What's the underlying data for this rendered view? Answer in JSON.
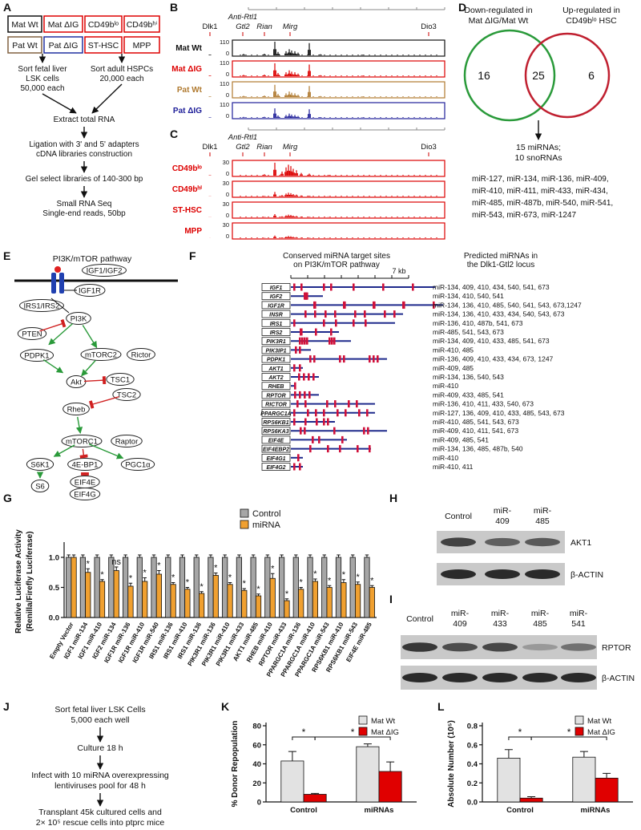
{
  "panel_labels": [
    "A",
    "B",
    "C",
    "D",
    "E",
    "F",
    "G",
    "H",
    "I",
    "J",
    "K",
    "L"
  ],
  "panel_a": {
    "groups": [
      "Mat Wt",
      "Mat ΔIG",
      "CD49bˡᵒ",
      "CD49bʰⁱ",
      "Pat Wt",
      "Pat ΔIG",
      "ST-HSC",
      "MPP"
    ],
    "left_sort": [
      "Sort fetal liver",
      "LSK cells",
      "50,000 each"
    ],
    "right_sort": [
      "Sort adult HSPCs",
      "20,000 each"
    ],
    "steps": [
      [
        "Extract total RNA"
      ],
      [
        "Ligation with 3' and 5' adapters",
        "cDNA libraries construction"
      ],
      [
        "Gel select libraries of 140-300 bp"
      ],
      [
        "Small RNA Seq",
        "Single-end reads, 50bp"
      ]
    ]
  },
  "panel_b": {
    "genes": [
      "Dlk1",
      "Anti-Rtl1",
      "Gtl2",
      "Rian",
      "Mirg",
      "Dio3"
    ],
    "tracks": [
      {
        "name": "Mat Wt",
        "max": 110,
        "min": 0
      },
      {
        "name": "Mat ΔIG",
        "max": 110,
        "min": 0
      },
      {
        "name": "Pat Wt",
        "max": 110,
        "min": 0
      },
      {
        "name": "Pat ΔIG",
        "max": 110,
        "min": 0
      }
    ]
  },
  "panel_c": {
    "genes": [
      "Dlk1",
      "Anti-Rtl1",
      "Gtl2",
      "Rian",
      "Mirg",
      "Dio3"
    ],
    "tracks": [
      {
        "name": "CD49bˡᵒ",
        "max": 30,
        "min": 0
      },
      {
        "name": "CD49bʰⁱ",
        "max": 30,
        "min": 0
      },
      {
        "name": "ST-HSC",
        "max": 30,
        "min": 0
      },
      {
        "name": "MPP",
        "max": 30,
        "min": 0
      }
    ]
  },
  "panel_d": {
    "left_set": [
      "Down-regulated in",
      "Mat ΔIG/Mat Wt"
    ],
    "right_set": [
      "Up-regulated in",
      "CD49bˡᵒ HSC"
    ],
    "left_only": 16,
    "overlap": 25,
    "right_only": 6,
    "overlap_summary": [
      "15 miRNAs;",
      "10 snoRNAs"
    ],
    "mirnas": [
      "miR-127, miR-134, miR-136, miR-409,",
      "miR-410, miR-411, miR-433, miR-434,",
      "miR-485, miR-487b, miR-540, miR-541,",
      "miR-543, miR-673, miR-1247"
    ]
  },
  "panel_e": {
    "title": "PI3K/mTOR pathway",
    "nodes": [
      "IGF1/IGF2",
      "IGF1R",
      "IRS1/IRS2",
      "PI3K",
      "PTEN",
      "PDPK1",
      "mTORC2",
      "Rictor",
      "Akt",
      "TSC1",
      "TSC2",
      "Rheb",
      "mTORC1",
      "Raptor",
      "S6K1",
      "4E-BP1",
      "PGC1α",
      "S6",
      "EIF4E",
      "EIF4G"
    ]
  },
  "panel_f": {
    "title": [
      "Conserved miRNA target sites",
      "on PI3K/mTOR pathway"
    ],
    "scale": "7 kb",
    "mirna_title": [
      "Predicted miRNAs in",
      "the Dlk1-Gtl2 locus"
    ],
    "rows": [
      {
        "gene": "IGF1",
        "mirnas": "miR-134, 409, 410, 434, 540, 541, 673"
      },
      {
        "gene": "IGF2",
        "mirnas": "miR-134, 410, 540, 541"
      },
      {
        "gene": "IGF1R",
        "mirnas": "miR-134, 136, 410, 485, 540, 541, 543, 673,1247"
      },
      {
        "gene": "INSR",
        "mirnas": "miR-134, 136, 410, 433, 434, 540, 543, 673"
      },
      {
        "gene": "IRS1",
        "mirnas": "miR-136, 410, 487b, 541, 673"
      },
      {
        "gene": "IRS2",
        "mirnas": "miR-485, 541, 543, 673"
      },
      {
        "gene": "PIK3R1",
        "mirnas": "miR-134, 409, 410, 433, 485, 541, 673"
      },
      {
        "gene": "PIK3IP1",
        "mirnas": "miR-410, 485"
      },
      {
        "gene": "PDPK1",
        "mirnas": "miR-136, 409, 410, 433, 434, 673, 1247"
      },
      {
        "gene": "AKT1",
        "mirnas": "miR-409, 485"
      },
      {
        "gene": "AKT2",
        "mirnas": "miR-134, 136, 540, 543"
      },
      {
        "gene": "RHEB",
        "mirnas": "miR-410"
      },
      {
        "gene": "RPTOR",
        "mirnas": "miR-409, 433, 485, 541"
      },
      {
        "gene": "RICTOR",
        "mirnas": "miR-136, 410, 411, 433, 540, 673"
      },
      {
        "gene": "PPARGC1A",
        "mirnas": "miR-127, 136, 409, 410, 433, 485, 543, 673"
      },
      {
        "gene": "RPS6KB1",
        "mirnas": "miR-410, 485, 541, 543, 673"
      },
      {
        "gene": "RPS6KA3",
        "mirnas": "miR-409, 410, 411, 541, 673"
      },
      {
        "gene": "EIF4E",
        "mirnas": "miR-409, 485, 541"
      },
      {
        "gene": "EIF4EBP2",
        "mirnas": "miR-134, 136, 485, 487b, 540"
      },
      {
        "gene": "EIF4G1",
        "mirnas": "miR-410"
      },
      {
        "gene": "EIF4G2",
        "mirnas": "miR-410, 411"
      }
    ]
  },
  "panel_h": {
    "lanes": [
      [
        "Control"
      ],
      [
        "miR-",
        "409"
      ],
      [
        "miR-",
        "485"
      ]
    ],
    "proteins": [
      "AKT1",
      "β-ACTIN"
    ]
  },
  "panel_i": {
    "lanes": [
      [
        "Control"
      ],
      [
        "miR-",
        "409"
      ],
      [
        "miR-",
        "433"
      ],
      [
        "miR-",
        "485"
      ],
      [
        "miR-",
        "541"
      ]
    ],
    "proteins": [
      "RPTOR",
      "β-ACTIN"
    ]
  },
  "panel_j": {
    "steps": [
      [
        "Sort fetal liver LSK Cells",
        "5,000 each well"
      ],
      [
        "Culture 18 h"
      ],
      [
        "Infect with 10 miRNA overexpressing",
        "lentiviruses pool for 48 h"
      ],
      [
        "Transplant 45k cultured cells and",
        "2× 10⁵ rescue cells into ptprc mice"
      ]
    ]
  },
  "chart_data": [
    {
      "type": "bar",
      "ylabel": [
        "Relative Luciferase Activity",
        "(Renilla/Firefly Luciferase)"
      ],
      "categories": [
        "Empty Vector",
        "IGF1 miR-134",
        "IGF1 miR-410",
        "IGF2 miR-134",
        "IGF1R miR-136",
        "IGF1R miR-410",
        "IGF1R miR-540",
        "IRS1 miR-136",
        "IRS1 miR-410",
        "IRS1 miR-136",
        "PIK3R1 miR-136",
        "PIK3R1 miR-410",
        "PIK3R1 miR-433",
        "AKT1 miR-485",
        "RHEB miR-410",
        "RPTOR miR-433",
        "PPARGC1A miR-136",
        "PPARGC1A miR-410",
        "PPARGC1A miR-543",
        "RPS6KB1 miR-410",
        "RPS6KB1 miR-543",
        "EIF4E miR-485"
      ],
      "series": [
        {
          "name": "Control",
          "color": "#a6a6a6",
          "values": [
            1,
            1,
            1,
            1,
            1,
            1,
            1,
            1,
            1,
            1,
            1,
            1,
            1,
            1,
            1,
            1,
            1,
            1,
            1,
            1,
            1,
            1
          ],
          "errors": [
            0.04,
            0.04,
            0.04,
            0.04,
            0.04,
            0.04,
            0.04,
            0.04,
            0.04,
            0.04,
            0.04,
            0.04,
            0.04,
            0.04,
            0.04,
            0.04,
            0.04,
            0.04,
            0.04,
            0.04,
            0.04,
            0.04
          ]
        },
        {
          "name": "miRNA",
          "color": "#f0a030",
          "values": [
            1,
            0.75,
            0.6,
            0.78,
            0.52,
            0.6,
            0.72,
            0.55,
            0.47,
            0.4,
            0.7,
            0.55,
            0.45,
            0.36,
            0.65,
            0.28,
            0.47,
            0.6,
            0.5,
            0.58,
            0.55,
            0.5
          ],
          "errors": [
            0.04,
            0.06,
            0.03,
            0.06,
            0.05,
            0.06,
            0.06,
            0.03,
            0.03,
            0.03,
            0.04,
            0.03,
            0.03,
            0.03,
            0.08,
            0.03,
            0.03,
            0.04,
            0.03,
            0.05,
            0.04,
            0.03
          ]
        }
      ],
      "significance": [
        null,
        "*",
        "*",
        "ns",
        "*",
        "*",
        "*",
        "*",
        "*",
        "*",
        "*",
        "*",
        "*",
        "*",
        "*",
        "*",
        "*",
        "*",
        "*",
        "*",
        "*",
        "*"
      ],
      "ylim": [
        0,
        1.2
      ],
      "yticks": [
        {
          "value": 0,
          "label": "0.0"
        },
        {
          "value": 0.5,
          "label": "0.5"
        },
        {
          "value": 1,
          "label": "1.0"
        }
      ]
    },
    {
      "type": "bar",
      "ylabel": [
        "% Donor Repopulation"
      ],
      "categories": [
        "Control",
        "miRNAs"
      ],
      "series": [
        {
          "name": "Mat Wt",
          "color": "#e2e2e2",
          "values": [
            43,
            58
          ],
          "errors": [
            10,
            3
          ]
        },
        {
          "name": "Mat ΔIG",
          "color": "#e00000",
          "values": [
            8,
            32
          ],
          "errors": [
            1,
            10
          ]
        }
      ],
      "significance": [
        "*",
        "*"
      ],
      "ylim": [
        0,
        80
      ],
      "yticks": [
        0,
        20,
        40,
        60,
        80
      ]
    },
    {
      "type": "bar",
      "ylabel": [
        "Absolute Number (10⁵)"
      ],
      "categories": [
        "Control",
        "miRNAs"
      ],
      "series": [
        {
          "name": "Mat Wt",
          "color": "#e2e2e2",
          "values": [
            0.46,
            0.47
          ],
          "errors": [
            0.09,
            0.06
          ]
        },
        {
          "name": "Mat ΔIG",
          "color": "#e00000",
          "values": [
            0.04,
            0.25
          ],
          "errors": [
            0.015,
            0.05
          ]
        }
      ],
      "significance": [
        "*",
        "*"
      ],
      "ylim": [
        0,
        0.8
      ],
      "yticks": [
        {
          "value": 0,
          "label": "0.0"
        },
        {
          "value": 0.2,
          "label": "0.2"
        },
        {
          "value": 0.4,
          "label": "0.4"
        },
        {
          "value": 0.6,
          "label": "0.6"
        },
        {
          "value": 0.8,
          "label": "0.8"
        }
      ]
    }
  ]
}
